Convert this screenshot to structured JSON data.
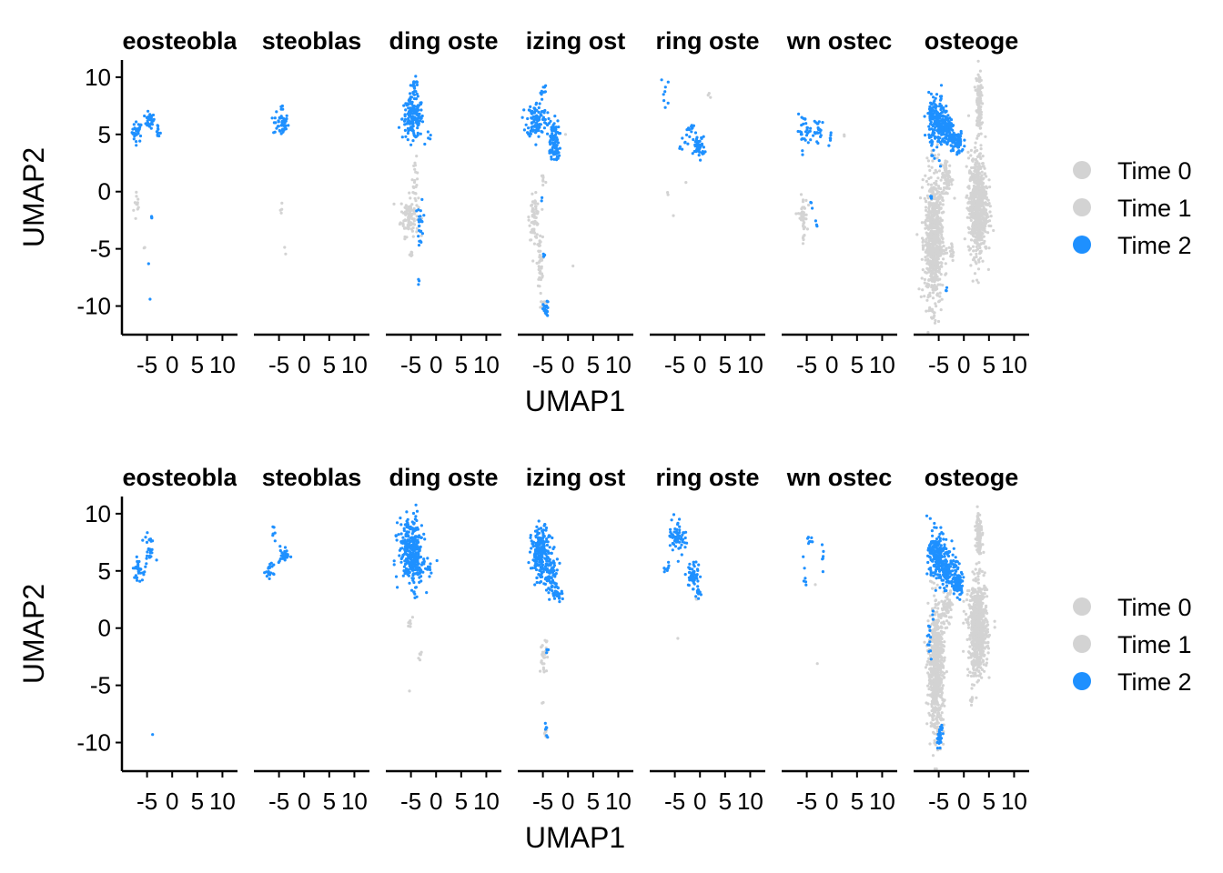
{
  "colors": {
    "time0": "#d3d3d3",
    "time1": "#d3d3d3",
    "time2": "#1e90ff",
    "axis": "#000000"
  },
  "legend": {
    "items": [
      "Time 0",
      "Time 1",
      "Time 2"
    ],
    "placement": "right"
  },
  "chart_data": [
    {
      "type": "scatter",
      "xlabel": "UMAP1",
      "ylabel": "UMAP2",
      "xlim": [
        -10,
        13
      ],
      "ylim": [
        -12.5,
        11.5
      ],
      "xticks": [
        "-5",
        "0",
        "5",
        "10"
      ],
      "yticks": [
        "10",
        "5",
        "0",
        "-5",
        "-10"
      ],
      "panels": [
        {
          "title": "eosteobla",
          "blue": [
            [
              -7,
              5.2,
              0.9,
              0.8,
              30
            ],
            [
              -4.5,
              6.2,
              0.9,
              0.6,
              30
            ],
            [
              -2.8,
              5.3,
              0.4,
              0.6,
              10
            ],
            [
              -4.2,
              -2.2,
              0.2,
              0.5,
              3
            ],
            [
              -4.7,
              -6.3,
              0,
              0,
              1
            ],
            [
              -4.4,
              -9.4,
              0,
              0,
              1
            ]
          ],
          "gray": [
            [
              -7,
              -1.2,
              0.6,
              1.5,
              12
            ],
            [
              -5.6,
              -4.8,
              0.3,
              0.2,
              2
            ]
          ]
        },
        {
          "title": "steoblas",
          "blue": [
            [
              -4.6,
              5.9,
              1.4,
              0.9,
              45
            ],
            [
              -4.3,
              7.5,
              0.5,
              0.5,
              4
            ]
          ],
          "gray": [
            [
              -4.4,
              -2.2,
              0.6,
              1.3,
              4
            ],
            [
              -3.8,
              -5.3,
              0.2,
              0.4,
              2
            ]
          ]
        },
        {
          "title": "ding oste",
          "blue": [
            [
              -4.6,
              6.4,
              1.9,
              1.6,
              160
            ],
            [
              -4.2,
              9,
              0.8,
              0.8,
              20
            ],
            [
              -3.1,
              -2.8,
              0.5,
              2,
              25
            ],
            [
              -3.5,
              -7.8,
              0.3,
              0.5,
              3
            ],
            [
              -1.5,
              5,
              0.6,
              0.4,
              4
            ]
          ],
          "gray": [
            [
              -5.3,
              -2.1,
              1.6,
              1.6,
              100
            ],
            [
              -4.1,
              0.8,
              0.4,
              1.8,
              20
            ],
            [
              -5,
              -5.5,
              0.4,
              0.5,
              6
            ]
          ]
        },
        {
          "title": "izing ost",
          "blue": [
            [
              -6.2,
              6.3,
              1.8,
              1.4,
              110
            ],
            [
              -3,
              4.8,
              1.1,
              1.4,
              60
            ],
            [
              -2.7,
              3.4,
              0.9,
              0.7,
              35
            ],
            [
              -5,
              8.8,
              0.7,
              0.6,
              10
            ],
            [
              -4.4,
              -10.4,
              0.5,
              0.7,
              22
            ],
            [
              -4.8,
              -5.5,
              0.3,
              0.4,
              3
            ],
            [
              -5.2,
              -0.5,
              0.2,
              0.4,
              2
            ]
          ],
          "gray": [
            [
              -6.7,
              -2.3,
              0.9,
              1.7,
              70
            ],
            [
              -5.6,
              -6.3,
              0.5,
              2.1,
              45
            ],
            [
              -4.8,
              -10,
              0.6,
              0.6,
              14
            ],
            [
              -4.9,
              1,
              0.5,
              0.8,
              8
            ],
            [
              -0.5,
              5,
              0,
              0,
              1
            ],
            [
              1,
              -6.5,
              0,
              0,
              1
            ]
          ]
        },
        {
          "title": "ring oste",
          "blue": [
            [
              -0.2,
              3.9,
              1,
              0.8,
              55
            ],
            [
              -1.8,
              5.4,
              0.8,
              0.5,
              12
            ],
            [
              -6.8,
              8.7,
              0.8,
              1.6,
              8
            ],
            [
              -3.2,
              4.4,
              1,
              0.6,
              8
            ]
          ],
          "gray": [
            [
              -6.4,
              -0.2,
              0.3,
              0.3,
              2
            ],
            [
              -2.8,
              0.8,
              0,
              0,
              1
            ],
            [
              -5.3,
              -2.1,
              0,
              0,
              1
            ],
            [
              2,
              8.4,
              0.3,
              0.4,
              3
            ]
          ]
        },
        {
          "title": "wn ostec",
          "blue": [
            [
              -5.5,
              5.3,
              1.3,
              1.2,
              30
            ],
            [
              -2.5,
              5.2,
              1,
              1.1,
              22
            ],
            [
              -0.3,
              4.8,
              0.4,
              0.5,
              6
            ],
            [
              -4.1,
              -1.2,
              0.3,
              0.3,
              3
            ],
            [
              -3,
              -2.9,
              0.3,
              0.3,
              3
            ]
          ],
          "gray": [
            [
              -5.8,
              -2.3,
              0.8,
              1.7,
              45
            ],
            [
              2.5,
              4.9,
              0.3,
              0.2,
              2
            ]
          ]
        },
        {
          "title": "osteoge",
          "blue": [
            [
              -5.2,
              6,
              1.6,
              2.2,
              180
            ],
            [
              -3.2,
              5.3,
              1.4,
              1.2,
              90
            ],
            [
              -1.5,
              4.3,
              1.3,
              0.9,
              80
            ],
            [
              -6.6,
              7.2,
              0.8,
              1,
              25
            ],
            [
              -6.4,
              -0.2,
              0.3,
              0.5,
              4
            ],
            [
              -3.5,
              -8.6,
              0.2,
              0.3,
              3
            ]
          ],
          "gray": [
            [
              -6,
              -4.2,
              1.6,
              5.2,
              700
            ],
            [
              -3.4,
              1.2,
              1,
              1.5,
              80
            ],
            [
              2.8,
              -1.2,
              1.7,
              4,
              650
            ],
            [
              3,
              7.8,
              0.5,
              2.7,
              120
            ],
            [
              -2.4,
              -5.2,
              0.4,
              1,
              15
            ]
          ]
        }
      ]
    },
    {
      "type": "scatter",
      "xlabel": "UMAP1",
      "ylabel": "UMAP2",
      "xlim": [
        -10,
        13
      ],
      "ylim": [
        -12.5,
        11.5
      ],
      "xticks": [
        "-5",
        "0",
        "5",
        "10"
      ],
      "yticks": [
        "10",
        "5",
        "0",
        "-5",
        "-10"
      ],
      "panels": [
        {
          "title": "eosteobla",
          "blue": [
            [
              -6.8,
              5.1,
              0.9,
              0.8,
              30
            ],
            [
              -4.5,
              6.8,
              0.8,
              0.9,
              22
            ],
            [
              -5.6,
              8,
              0.5,
              0.3,
              3
            ],
            [
              -3.9,
              -9.3,
              0,
              0,
              1
            ]
          ],
          "gray": []
        },
        {
          "title": "steoblas",
          "blue": [
            [
              -6.8,
              4.9,
              0.7,
              0.6,
              20
            ],
            [
              -3.9,
              6.4,
              1,
              0.7,
              25
            ],
            [
              -6,
              8.2,
              0.5,
              0.8,
              6
            ]
          ],
          "gray": []
        },
        {
          "title": "ding oste",
          "blue": [
            [
              -5,
              7.1,
              2.2,
              2.4,
              240
            ],
            [
              -4.4,
              5.3,
              1.9,
              1.3,
              100
            ],
            [
              -1.6,
              5.2,
              0.5,
              0.6,
              8
            ],
            [
              -4.2,
              2.8,
              0.4,
              0.6,
              5
            ]
          ],
          "gray": [
            [
              -5.2,
              0.5,
              0.4,
              0.6,
              8
            ],
            [
              -3.2,
              -2.4,
              0.4,
              0.3,
              6
            ],
            [
              -5.3,
              -5.5,
              0,
              0,
              1
            ]
          ]
        },
        {
          "title": "izing ost",
          "blue": [
            [
              -5.3,
              6.5,
              1.8,
              2.1,
              200
            ],
            [
              -3.3,
              4.6,
              1.2,
              1.4,
              70
            ],
            [
              -2,
              3,
              0.8,
              0.5,
              25
            ],
            [
              -4.3,
              -8.8,
              0.4,
              0.8,
              6
            ],
            [
              -4,
              -1.9,
              0.3,
              0.3,
              3
            ]
          ],
          "gray": [
            [
              -4.8,
              -2.5,
              0.7,
              1.3,
              30
            ],
            [
              -4.5,
              -9.1,
              0.4,
              0.3,
              6
            ],
            [
              -5,
              -6.5,
              0.2,
              0.2,
              2
            ]
          ]
        },
        {
          "title": "ring oste",
          "blue": [
            [
              -4.5,
              8.1,
              1.5,
              1.4,
              60
            ],
            [
              -1.3,
              4.5,
              1.2,
              1.2,
              50
            ],
            [
              -0.3,
              3,
              0.4,
              0.5,
              10
            ],
            [
              -6.6,
              5.5,
              0.7,
              0.6,
              8
            ]
          ],
          "gray": [
            [
              -4.4,
              -0.9,
              0,
              0,
              1
            ],
            [
              -0.6,
              2.6,
              0.2,
              0.2,
              3
            ]
          ]
        },
        {
          "title": "wn ostec",
          "blue": [
            [
              -4.3,
              7.5,
              0.9,
              0.6,
              8
            ],
            [
              -5.4,
              5.2,
              0.3,
              1.2,
              6
            ],
            [
              -2,
              6.2,
              0.4,
              1.3,
              6
            ]
          ],
          "gray": [
            [
              -2.9,
              -3.1,
              0,
              0,
              1
            ],
            [
              -3.3,
              3.8,
              0,
              0,
              1
            ]
          ]
        },
        {
          "title": "osteoge",
          "blue": [
            [
              -5.3,
              6.3,
              1.6,
              2,
              200
            ],
            [
              -3.2,
              5,
              1.5,
              1.3,
              110
            ],
            [
              -1.3,
              3.9,
              1.1,
              1.1,
              80
            ],
            [
              -4.8,
              -9.5,
              0.5,
              1.1,
              30
            ],
            [
              -6.9,
              -1,
              0.4,
              1.7,
              12
            ],
            [
              -6.1,
              1.2,
              0.2,
              0.5,
              3
            ]
          ],
          "gray": [
            [
              -5.5,
              -3.6,
              1.4,
              4.9,
              650
            ],
            [
              -3.4,
              1.8,
              1,
              1.3,
              70
            ],
            [
              2.8,
              -0.1,
              1.7,
              3.7,
              650
            ],
            [
              3,
              8.4,
              0.5,
              1.7,
              110
            ],
            [
              1.5,
              -6,
              0.3,
              0.9,
              8
            ]
          ]
        }
      ]
    }
  ]
}
